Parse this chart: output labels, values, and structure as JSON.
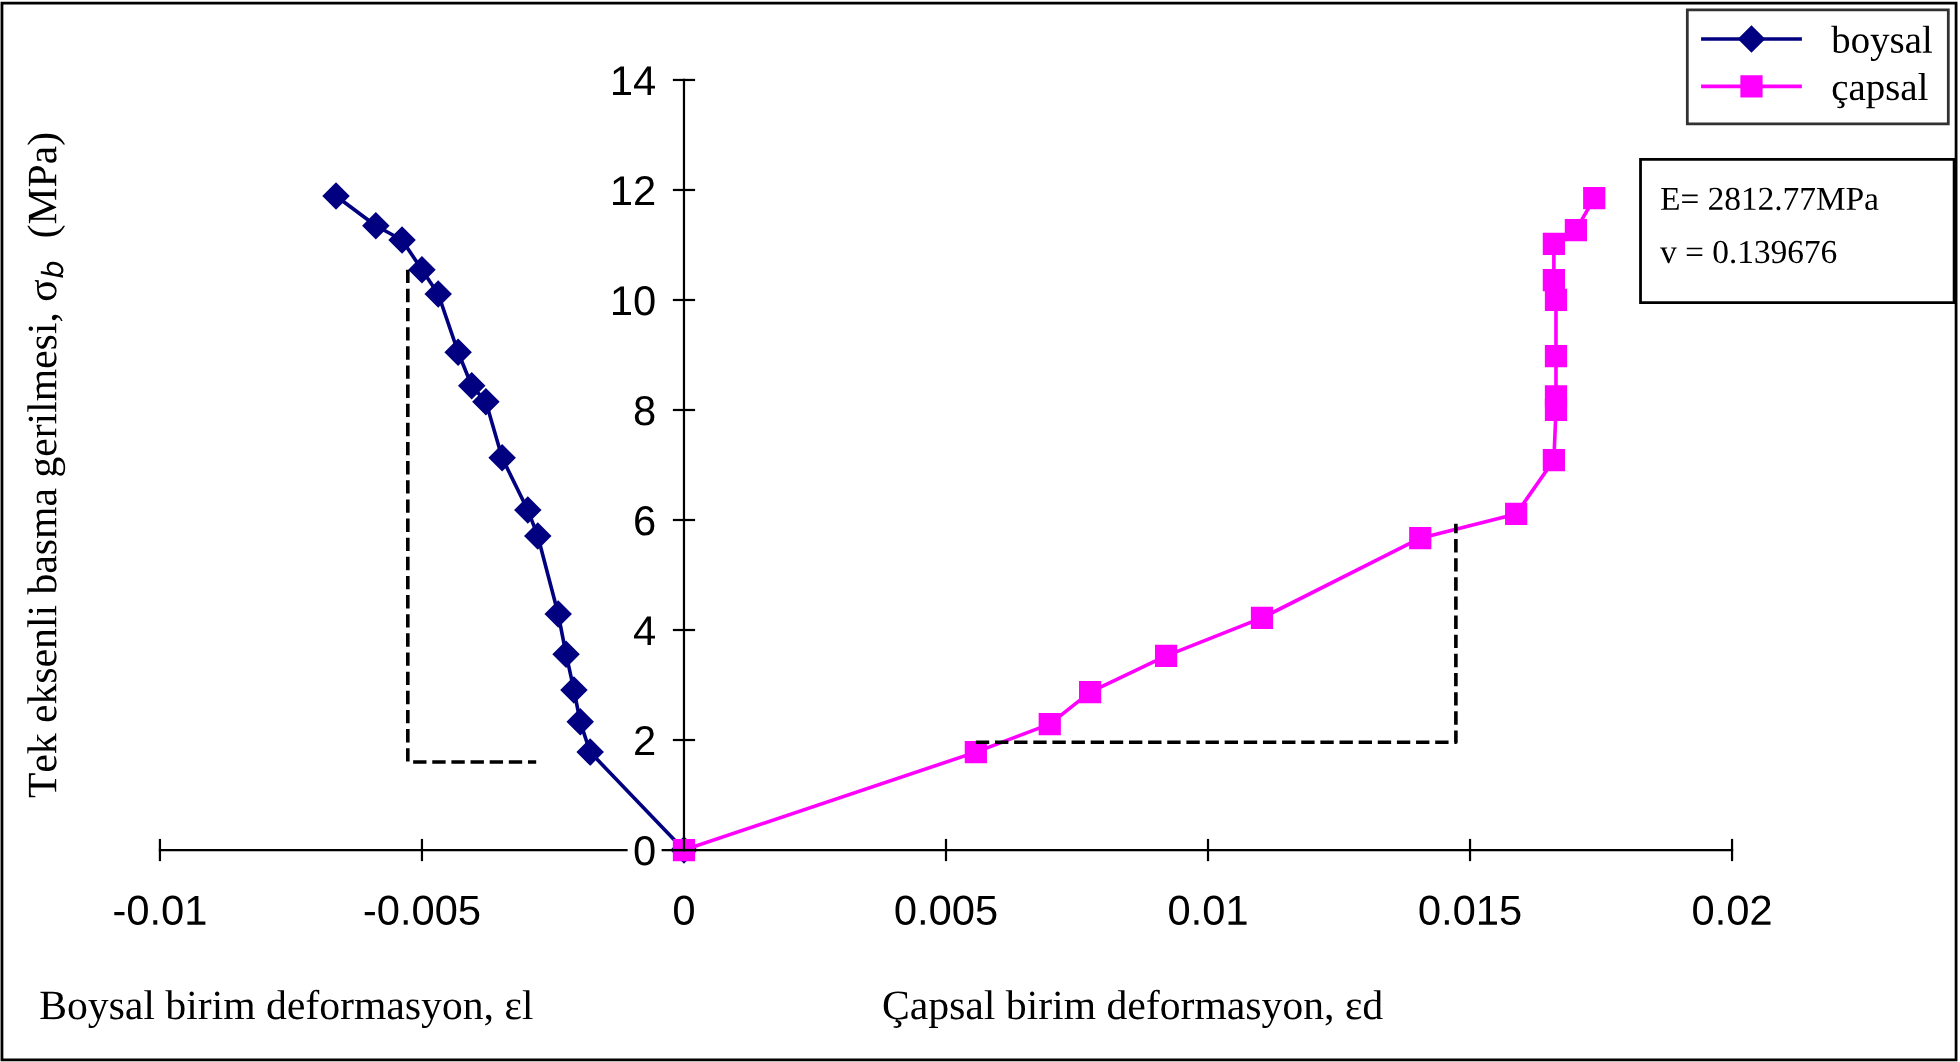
{
  "chart_data": {
    "type": "line",
    "ylabel": "Tek eksenli basma gerilmesi, σ$_{b}$  (MPa)",
    "xlim": [
      -0.01,
      0.02
    ],
    "xticks": [
      -0.01,
      -0.005,
      0,
      0.005,
      0.01,
      0.015,
      0.02
    ],
    "ylim": [
      0,
      14
    ],
    "yticks": [
      0,
      2,
      4,
      6,
      8,
      10,
      12,
      14
    ],
    "grid": false,
    "legend": "top right",
    "series": [
      {
        "name": "boysal",
        "color": "#000080",
        "marker": "diamond",
        "line_style": "solid",
        "x": [
          -0.00664,
          -0.00588,
          -0.00538,
          -0.005,
          -0.00469,
          -0.00431,
          -0.00405,
          -0.00378,
          -0.00347,
          -0.00298,
          -0.00279,
          -0.0024,
          -0.00225,
          -0.0021,
          -0.00198,
          -0.00179,
          0
        ],
        "values": [
          11.89,
          11.35,
          11.09,
          10.55,
          10.11,
          9.05,
          8.44,
          8.15,
          7.13,
          6.18,
          5.71,
          4.29,
          3.56,
          2.91,
          2.33,
          1.78,
          0
        ]
      },
      {
        "name": "çapsal",
        "color": "#ff00ff",
        "marker": "square",
        "line_style": "solid",
        "x": [
          0,
          0.00557,
          0.00698,
          0.00775,
          0.0092,
          0.01103,
          0.01405,
          0.01588,
          0.0166,
          0.01664,
          0.01664,
          0.01664,
          0.01664,
          0.0166,
          0.0166,
          0.01702,
          0.01737
        ],
        "values": [
          0,
          1.78,
          2.29,
          2.87,
          3.53,
          4.22,
          5.67,
          6.11,
          7.09,
          8.0,
          8.25,
          8.98,
          10.0,
          10.36,
          11.02,
          11.27,
          11.85
        ]
      },
      {
        "color": "#000000",
        "marker": "none",
        "line_style": "dashed",
        "x": [
          -0.00527,
          -0.00527,
          -0.00282
        ],
        "values": [
          10.55,
          1.6,
          1.6
        ]
      },
      {
        "color": "#000000",
        "marker": "none",
        "line_style": "dashed",
        "x": [
          0.00557,
          0.01473,
          0.01473
        ],
        "values": [
          1.96,
          1.96,
          5.93
        ]
      }
    ],
    "annotations": [
      "Boysal birim deformasyon, εl",
      "Çapsal birim deformasyon, εd",
      "E= 2812.77MPa",
      "v = 0.139676"
    ]
  }
}
